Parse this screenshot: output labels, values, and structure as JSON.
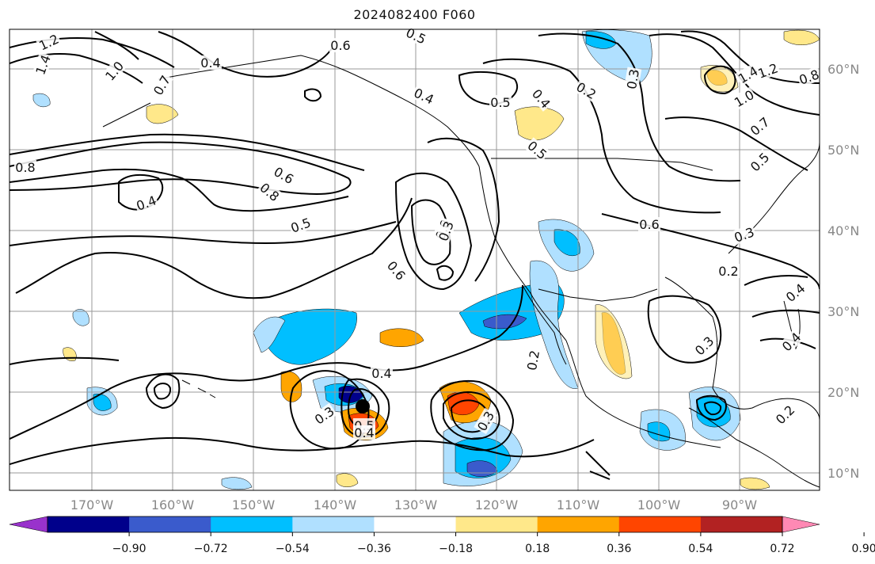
{
  "title": "2024082400 F060",
  "map": {
    "lon_ticks": [
      "170°W",
      "160°W",
      "150°W",
      "140°W",
      "130°W",
      "120°W",
      "110°W",
      "100°W",
      "90°W"
    ],
    "lat_ticks": [
      "60°N",
      "50°N",
      "40°N",
      "30°N",
      "20°N",
      "10°N"
    ],
    "contour_labels": [
      {
        "text": "1.2"
      },
      {
        "text": "1.4"
      },
      {
        "text": "1.0"
      },
      {
        "text": "0.7"
      },
      {
        "text": "0.4"
      },
      {
        "text": "0.6"
      },
      {
        "text": "0.5"
      },
      {
        "text": "0.4"
      },
      {
        "text": "0.5"
      },
      {
        "text": "0.2"
      },
      {
        "text": "0.3"
      },
      {
        "text": "1.4"
      },
      {
        "text": "1.2"
      },
      {
        "text": "0.8"
      },
      {
        "text": "1.0"
      },
      {
        "text": "0.7"
      },
      {
        "text": "0.5"
      },
      {
        "text": "0.4"
      },
      {
        "text": "0.5"
      },
      {
        "text": "0.8"
      },
      {
        "text": "0.6"
      },
      {
        "text": "0.8"
      },
      {
        "text": "0.4"
      },
      {
        "text": "0.5"
      },
      {
        "text": "0.8"
      },
      {
        "text": "0.6"
      },
      {
        "text": "0.3"
      },
      {
        "text": "0.6"
      },
      {
        "text": "0.2"
      },
      {
        "text": "0.2"
      },
      {
        "text": "0.4"
      },
      {
        "text": "0.3"
      },
      {
        "text": "0.3"
      },
      {
        "text": "0.4"
      },
      {
        "text": "0.4"
      },
      {
        "text": "0.3"
      },
      {
        "text": "0.5"
      },
      {
        "text": "0.4"
      },
      {
        "text": "0.3"
      },
      {
        "text": "0.2"
      }
    ]
  },
  "colorbar": {
    "colors": [
      "#9932cc",
      "#00008b",
      "#3a5bcc",
      "#00bfff",
      "#b0e0ff",
      "#ffffff",
      "#ffe88a",
      "#ffa500",
      "#ff4500",
      "#b22222",
      "#ff89b4"
    ],
    "labels": [
      "−0.90",
      "−0.72",
      "−0.54",
      "−0.36",
      "−0.18",
      "0.18",
      "0.36",
      "0.54",
      "0.72",
      "0.90"
    ]
  }
}
